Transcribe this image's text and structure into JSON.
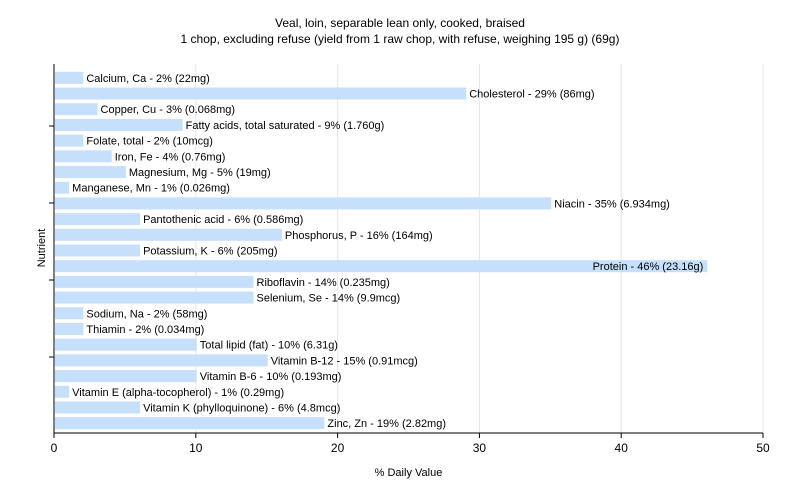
{
  "chart_data": {
    "type": "bar",
    "orientation": "horizontal",
    "title": "Veal, loin, separable lean only, cooked, braised",
    "subtitle": "1 chop, excluding refuse (yield from 1 raw chop, with refuse, weighing 195 g) (69g)",
    "xlabel": "% Daily Value",
    "ylabel": "Nutrient",
    "xlim": [
      0,
      50
    ],
    "xticks": [
      0,
      10,
      20,
      30,
      40,
      50
    ],
    "grid": true,
    "bar_color": "#c6e0fb",
    "bars": [
      {
        "value": 2,
        "label": "Calcium, Ca - 2% (22mg)"
      },
      {
        "value": 29,
        "label": "Cholesterol - 29% (86mg)"
      },
      {
        "value": 3,
        "label": "Copper, Cu - 3% (0.068mg)"
      },
      {
        "value": 9,
        "label": "Fatty acids, total saturated - 9% (1.760g)"
      },
      {
        "value": 2,
        "label": "Folate, total - 2% (10mcg)"
      },
      {
        "value": 4,
        "label": "Iron, Fe - 4% (0.76mg)"
      },
      {
        "value": 5,
        "label": "Magnesium, Mg - 5% (19mg)"
      },
      {
        "value": 1,
        "label": "Manganese, Mn - 1% (0.026mg)"
      },
      {
        "value": 35,
        "label": "Niacin - 35% (6.934mg)"
      },
      {
        "value": 6,
        "label": "Pantothenic acid - 6% (0.586mg)"
      },
      {
        "value": 16,
        "label": "Phosphorus, P - 16% (164mg)"
      },
      {
        "value": 6,
        "label": "Potassium, K - 6% (205mg)"
      },
      {
        "value": 46,
        "label": "Protein - 46% (23.16g)"
      },
      {
        "value": 14,
        "label": "Riboflavin - 14% (0.235mg)"
      },
      {
        "value": 14,
        "label": "Selenium, Se - 14% (9.9mcg)"
      },
      {
        "value": 2,
        "label": "Sodium, Na - 2% (58mg)"
      },
      {
        "value": 2,
        "label": "Thiamin - 2% (0.034mg)"
      },
      {
        "value": 10,
        "label": "Total lipid (fat) - 10% (6.31g)"
      },
      {
        "value": 15,
        "label": "Vitamin B-12 - 15% (0.91mcg)"
      },
      {
        "value": 10,
        "label": "Vitamin B-6 - 10% (0.193mg)"
      },
      {
        "value": 1,
        "label": "Vitamin E (alpha-tocopherol) - 1% (0.29mg)"
      },
      {
        "value": 6,
        "label": "Vitamin K (phylloquinone) - 6% (4.8mcg)"
      },
      {
        "value": 19,
        "label": "Zinc, Zn - 19% (2.82mg)"
      }
    ]
  }
}
